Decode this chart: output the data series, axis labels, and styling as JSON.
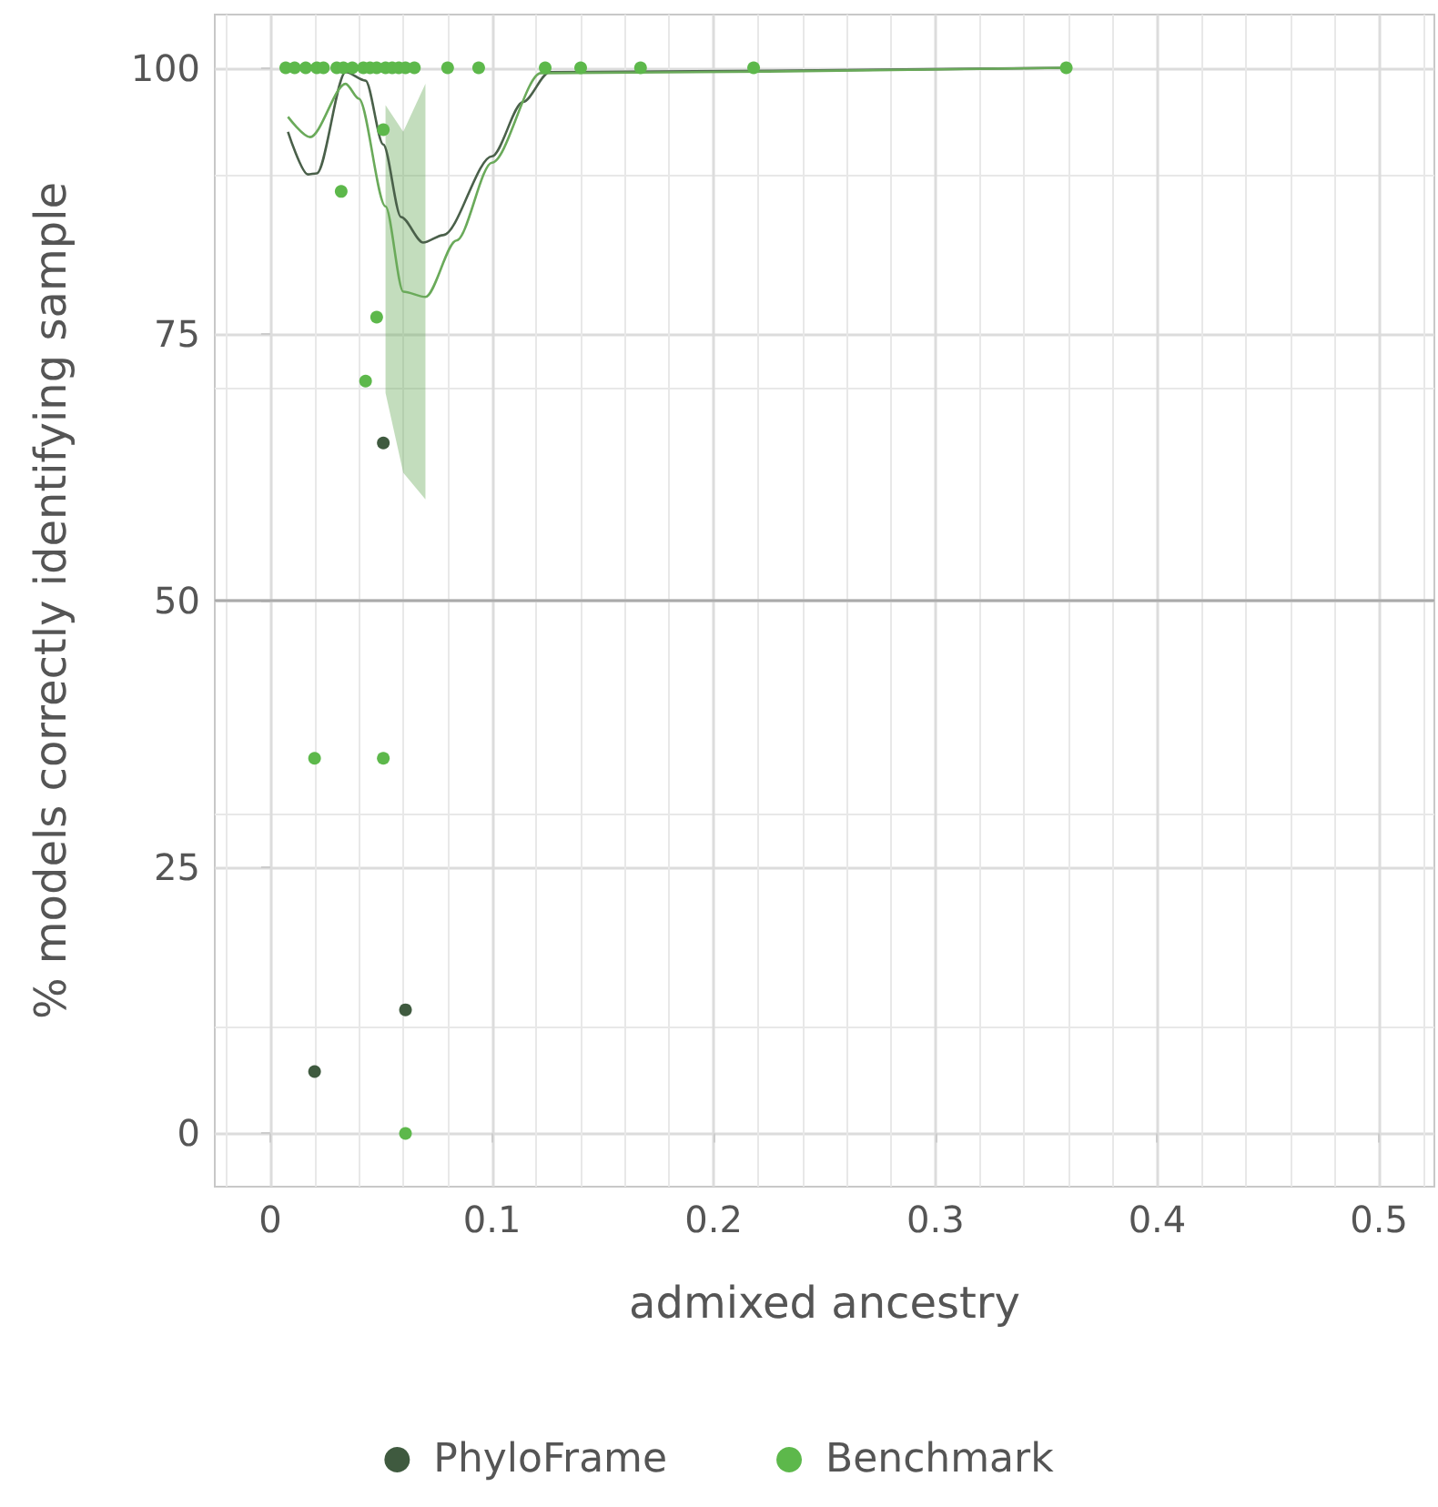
{
  "chart_data": {
    "type": "scatter",
    "xlabel": "admixed ancestry",
    "ylabel": "% models correctly identifying sample",
    "xlim": [
      -0.025,
      0.525
    ],
    "ylim": [
      -5,
      105
    ],
    "xticks": [
      0,
      0.1,
      0.2,
      0.3,
      0.4,
      0.5
    ],
    "yticks": [
      0,
      25,
      50,
      75,
      100
    ],
    "grid": true,
    "legend": "bottom",
    "marker": "circle",
    "ref_lines": [
      {
        "axis": "y",
        "value": 50,
        "color": "#aaaaaa"
      }
    ],
    "series": [
      {
        "type": "line",
        "color": "#4a604a",
        "marker": "none",
        "x": [
          0.008,
          0.017,
          0.021,
          0.034,
          0.043,
          0.051,
          0.059,
          0.069,
          0.078,
          0.1,
          0.114,
          0.126,
          0.359
        ],
        "values": [
          94.0,
          90.0,
          90.1,
          99.6,
          98.8,
          92.8,
          86.0,
          83.6,
          84.3,
          91.7,
          96.8,
          99.6,
          100
        ]
      },
      {
        "type": "line",
        "color": "#6aaa5a",
        "marker": "none",
        "x": [
          0.008,
          0.018,
          0.034,
          0.04,
          0.052,
          0.06,
          0.07,
          0.084,
          0.1,
          0.122,
          0.359
        ],
        "values": [
          95.4,
          93.5,
          98.5,
          97.1,
          87.0,
          79.0,
          78.5,
          83.8,
          91.1,
          99.5,
          100
        ],
        "lower": [
          null,
          null,
          null,
          null,
          69.5,
          62.0,
          59.5,
          null,
          null,
          null,
          null
        ],
        "upper": [
          null,
          null,
          null,
          null,
          96.5,
          94.0,
          98.5,
          null,
          null,
          null,
          null
        ]
      },
      {
        "name": "PhyloFrame",
        "color": "#3f5a3f",
        "x": [
          0.051,
          0.02,
          0.061
        ],
        "values": [
          64.8,
          5.8,
          11.6
        ]
      },
      {
        "name": "Benchmark",
        "color": "#5db84b",
        "x": [
          0.007,
          0.011,
          0.016,
          0.021,
          0.024,
          0.03,
          0.033,
          0.037,
          0.042,
          0.045,
          0.048,
          0.052,
          0.055,
          0.058,
          0.061,
          0.065,
          0.08,
          0.094,
          0.124,
          0.14,
          0.167,
          0.218,
          0.359,
          0.051,
          0.048,
          0.043,
          0.032,
          0.02,
          0.051,
          0.061
        ],
        "values": [
          100,
          100,
          100,
          100,
          100,
          100,
          100,
          100,
          100,
          100,
          100,
          100,
          100,
          100,
          100,
          100,
          100,
          100,
          100,
          100,
          100,
          100,
          100,
          94.2,
          76.6,
          70.6,
          88.4,
          35.2,
          35.2,
          0
        ]
      }
    ]
  }
}
